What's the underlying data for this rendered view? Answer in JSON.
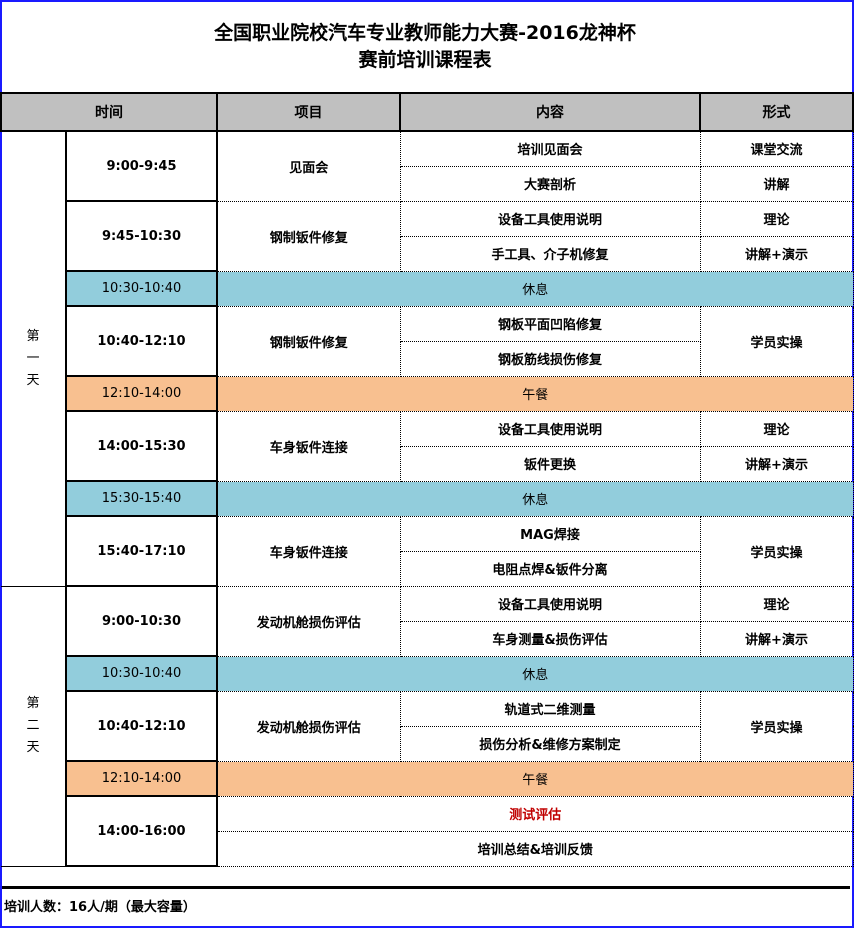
{
  "title": {
    "line1": "全国职业院校汽车专业教师能力大赛-2016龙神杯",
    "line2": "赛前培训课程表"
  },
  "colors": {
    "break": "#92cddc",
    "lunch": "#f8c090",
    "header": "#c0c0c0",
    "highlight": "#c00000",
    "border": "#1a1aff"
  },
  "headers": [
    "时间",
    "项目",
    "内容",
    "形式"
  ],
  "days": [
    {
      "label": "第一天",
      "slots": [
        {
          "type": "session",
          "time": "9:00-9:45",
          "project": "见面会",
          "items": [
            {
              "content": "培训见面会",
              "form": "课堂交流"
            },
            {
              "content": "大赛剖析",
              "form": "讲解"
            }
          ]
        },
        {
          "type": "session",
          "time": "9:45-10:30",
          "project": "钢制钣件修复",
          "items": [
            {
              "content": "设备工具使用说明",
              "form": "理论"
            },
            {
              "content": "手工具、介子机修复",
              "form": "讲解+演示"
            }
          ]
        },
        {
          "type": "break",
          "kind": "break",
          "time": "10:30-10:40",
          "label": "休息"
        },
        {
          "type": "session",
          "time": "10:40-12:10",
          "project": "钢制钣件修复",
          "form": "学员实操",
          "items": [
            {
              "content": "钢板平面凹陷修复"
            },
            {
              "content": "钢板筋线损伤修复"
            }
          ]
        },
        {
          "type": "break",
          "kind": "lunch",
          "time": "12:10-14:00",
          "label": "午餐"
        },
        {
          "type": "session",
          "time": "14:00-15:30",
          "project": "车身钣件连接",
          "items": [
            {
              "content": "设备工具使用说明",
              "form": "理论"
            },
            {
              "content": "钣件更换",
              "form": "讲解+演示"
            }
          ]
        },
        {
          "type": "break",
          "kind": "break",
          "time": "15:30-15:40",
          "label": "休息"
        },
        {
          "type": "session",
          "time": "15:40-17:10",
          "project": "车身钣件连接",
          "form": "学员实操",
          "items": [
            {
              "content": "MAG焊接"
            },
            {
              "content": "电阻点焊&钣件分离"
            }
          ]
        }
      ]
    },
    {
      "label": "第二天",
      "slots": [
        {
          "type": "session",
          "time": "9:00-10:30",
          "project": "发动机舱损伤评估",
          "items": [
            {
              "content": "设备工具使用说明",
              "form": "理论"
            },
            {
              "content": "车身测量&损伤评估",
              "form": "讲解+演示"
            }
          ]
        },
        {
          "type": "break",
          "kind": "break",
          "time": "10:30-10:40",
          "label": "休息"
        },
        {
          "type": "session",
          "time": "10:40-12:10",
          "project": "发动机舱损伤评估",
          "form": "学员实操",
          "items": [
            {
              "content": "轨道式二维测量"
            },
            {
              "content": "损伤分析&维修方案制定"
            }
          ]
        },
        {
          "type": "break",
          "kind": "lunch",
          "time": "12:10-14:00",
          "label": "午餐"
        },
        {
          "type": "wide",
          "time": "14:00-16:00",
          "items": [
            {
              "content": "测试评估",
              "highlight": true
            },
            {
              "content": "培训总结&培训反馈"
            }
          ]
        }
      ]
    }
  ],
  "footer": "培训人数：16人/期（最大容量）"
}
